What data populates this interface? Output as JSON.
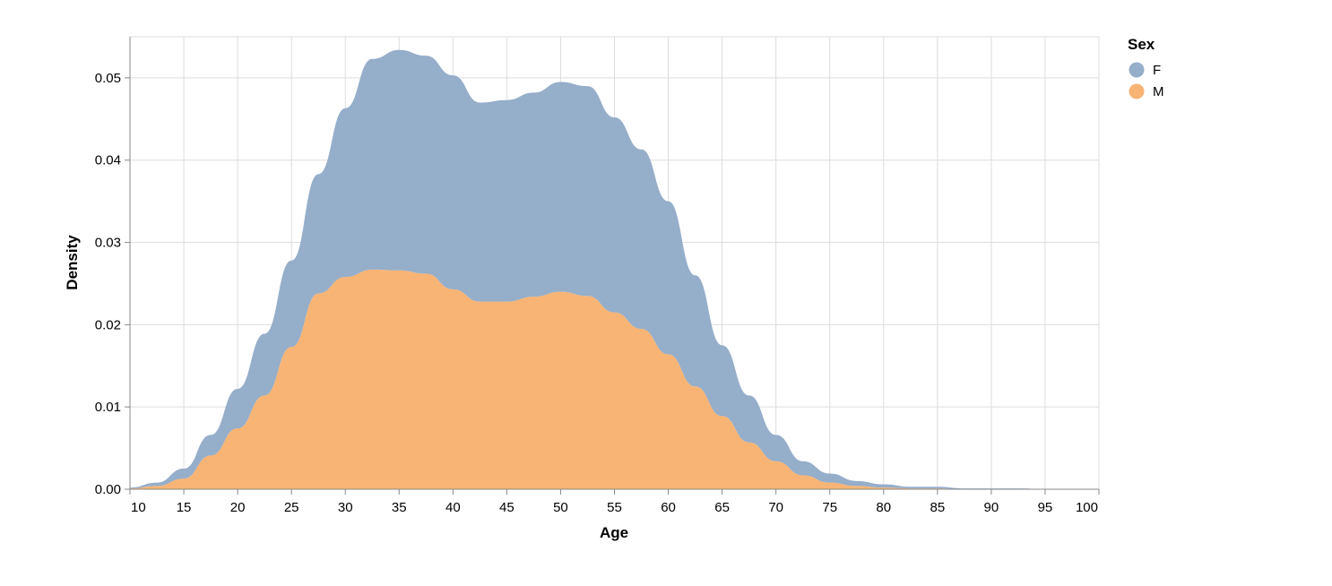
{
  "chart_data": {
    "type": "area",
    "stacked": true,
    "xlabel": "Age",
    "ylabel": "Density",
    "xlim": [
      10,
      100
    ],
    "ylim": [
      0,
      0.05
    ],
    "x_ticks": [
      "10",
      "15",
      "20",
      "25",
      "30",
      "35",
      "40",
      "45",
      "50",
      "55",
      "60",
      "65",
      "70",
      "75",
      "80",
      "85",
      "90",
      "95",
      "100"
    ],
    "y_ticks": [
      "0.00",
      "0.01",
      "0.02",
      "0.03",
      "0.04",
      "0.05"
    ],
    "grid": true,
    "legend": {
      "title": "Sex",
      "position": "top-right"
    },
    "x": [
      10,
      12.5,
      15,
      17.5,
      20,
      22.5,
      25,
      27.5,
      30,
      32.5,
      35,
      37.5,
      40,
      42.5,
      45,
      47.5,
      50,
      52.5,
      55,
      57.5,
      60,
      62.5,
      65,
      67.5,
      70,
      72.5,
      75,
      77.5,
      80,
      82.5,
      85,
      87.5,
      90,
      92.5,
      95,
      97.5,
      100
    ],
    "series": [
      {
        "name": "F",
        "color": "#95aeca",
        "values": [
          0.0001,
          0.0004,
          0.0012,
          0.0025,
          0.0048,
          0.0075,
          0.0105,
          0.0145,
          0.0205,
          0.0256,
          0.0268,
          0.0265,
          0.026,
          0.0242,
          0.0245,
          0.0248,
          0.0255,
          0.0255,
          0.0237,
          0.0218,
          0.0186,
          0.0135,
          0.0086,
          0.0057,
          0.0032,
          0.0017,
          0.0011,
          0.0006,
          0.0004,
          0.0002,
          0.0002,
          0.0001,
          0.0001,
          0.0001,
          0.0,
          0.0,
          0.0
        ]
      },
      {
        "name": "M",
        "color": "#f8b475",
        "values": [
          0.0001,
          0.0004,
          0.0013,
          0.0041,
          0.0074,
          0.0114,
          0.0173,
          0.0238,
          0.0258,
          0.0267,
          0.0266,
          0.0262,
          0.0243,
          0.0228,
          0.0228,
          0.0234,
          0.024,
          0.0235,
          0.0215,
          0.0195,
          0.0164,
          0.0125,
          0.0089,
          0.0057,
          0.0034,
          0.0017,
          0.0008,
          0.0004,
          0.0002,
          0.0001,
          0.0001,
          0.0,
          0.0,
          0.0,
          0.0,
          0.0,
          0.0
        ]
      }
    ]
  }
}
